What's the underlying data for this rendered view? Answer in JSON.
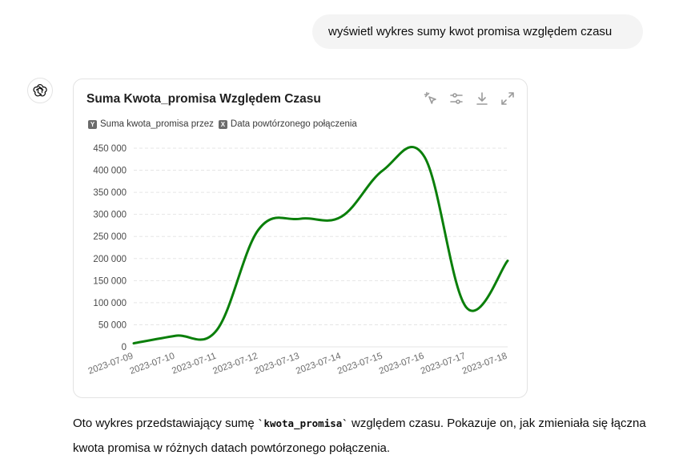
{
  "user_message": "wyświetl wykres sumy kwot promisa względem czasu",
  "chart": {
    "title": "Suma Kwota_promisa Względem Czasu",
    "legend": [
      {
        "chip": "Y",
        "label": "Suma kwota_promisa przez"
      },
      {
        "chip": "X",
        "label": "Data powtórzonego połączenia"
      }
    ]
  },
  "chart_data": {
    "type": "line",
    "title": "Suma Kwota_promisa Względem Czasu",
    "xlabel": "",
    "ylabel": "",
    "x": [
      "2023-07-09",
      "2023-07-10",
      "2023-07-11",
      "2023-07-12",
      "2023-07-13",
      "2023-07-14",
      "2023-07-15",
      "2023-07-16",
      "2023-07-17",
      "2023-07-18"
    ],
    "series": [
      {
        "name": "Suma kwota_promisa przez",
        "values": [
          8000,
          25000,
          38000,
          265000,
          290000,
          295000,
          400000,
          430000,
          90000,
          195000
        ],
        "color": "#0a7f0a"
      }
    ],
    "yticks": [
      0,
      50000,
      100000,
      150000,
      200000,
      250000,
      300000,
      350000,
      400000,
      450000
    ],
    "ytick_labels": [
      "0",
      "50 000",
      "100 000",
      "150 000",
      "200 000",
      "250 000",
      "300 000",
      "350 000",
      "400 000",
      "450 000"
    ],
    "ylim": [
      0,
      450000
    ],
    "grid": true,
    "legend_position": "top-left"
  },
  "answer": {
    "before": "Oto wykres przedstawiający sumę ",
    "code": "`kwota_promisa`",
    "after": " względem czasu. Pokazuje on, jak zmieniała się łączna kwota promisa w różnych datach powtórzonego połączenia."
  },
  "colors": {
    "line": "#0a7f0a",
    "grid": "#e5e5e5",
    "axis_text": "#6b6b6b"
  },
  "icons": [
    "openai-logo-icon",
    "select-icon",
    "filter-settings-icon",
    "download-icon",
    "expand-icon"
  ]
}
